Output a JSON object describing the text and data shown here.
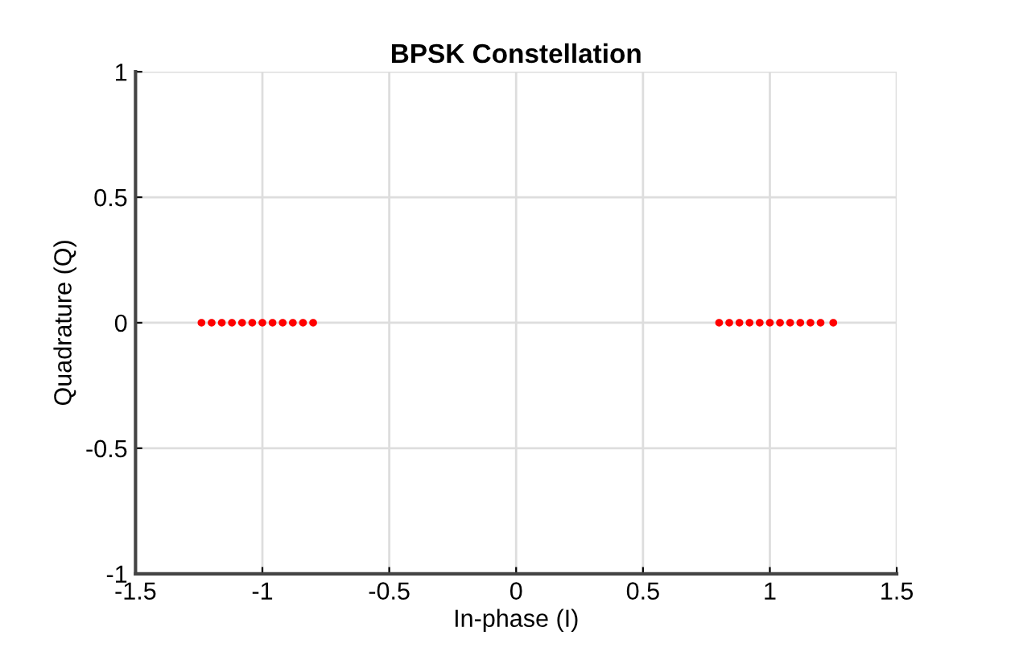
{
  "chart_data": {
    "type": "scatter",
    "title": "BPSK Constellation",
    "xlabel": "In-phase (I)",
    "ylabel": "Quadrature (Q)",
    "series": [
      {
        "color": "#ff0000",
        "x": [
          -1.24,
          -1.2,
          -1.16,
          -1.12,
          -1.08,
          -1.04,
          -1.0,
          -0.96,
          -0.92,
          -0.88,
          -0.84,
          -0.8,
          0.8,
          0.84,
          0.88,
          0.92,
          0.96,
          1.0,
          1.04,
          1.08,
          1.12,
          1.16,
          1.2,
          1.25
        ],
        "values": [
          0,
          0,
          0,
          0,
          0,
          0,
          0,
          0,
          0,
          0,
          0,
          0,
          0,
          0,
          0,
          0,
          0,
          0,
          0,
          0,
          0,
          0,
          0,
          0
        ]
      }
    ],
    "xlim": [
      -1.5,
      1.5
    ],
    "ylim": [
      -1,
      1
    ],
    "xticks": [
      -1.5,
      -1,
      -0.5,
      0,
      0.5,
      1,
      1.5
    ],
    "yticks": [
      -1,
      -0.5,
      0,
      0.5,
      1
    ],
    "grid": true,
    "marker": "circle"
  }
}
